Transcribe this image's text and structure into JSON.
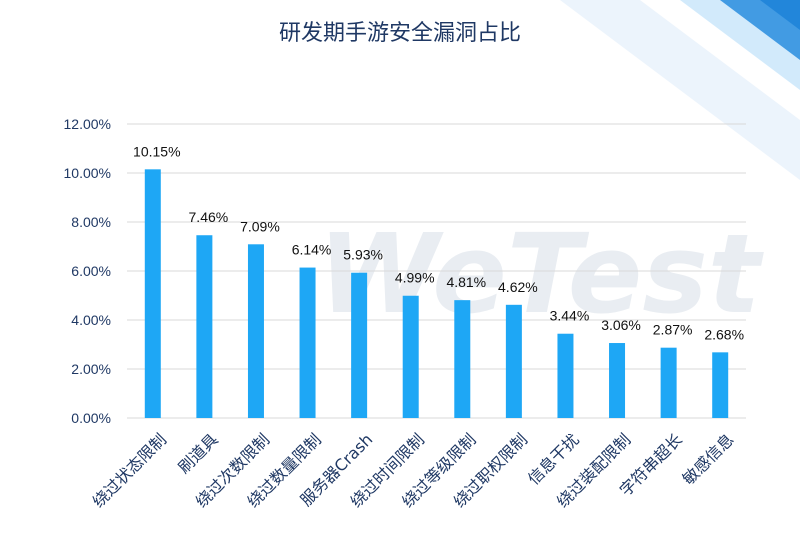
{
  "colors": {
    "bar": "#1ea7f5",
    "gridline": "#d9d9d9",
    "axis_text": "#1f3864",
    "title": "#1f3864",
    "accent_band": "#0a79d6"
  },
  "watermark": "WeTest",
  "chart_data": {
    "type": "bar",
    "title": "研发期手游安全漏洞占比",
    "xlabel": "",
    "ylabel": "",
    "ylim": [
      0,
      0.12
    ],
    "ytick_values": [
      0,
      0.02,
      0.04,
      0.06,
      0.08,
      0.1,
      0.12
    ],
    "ytick_labels": [
      "0.00%",
      "2.00%",
      "4.00%",
      "6.00%",
      "8.00%",
      "10.00%",
      "12.00%"
    ],
    "grid": true,
    "legend": "none",
    "categories": [
      "绕过状态限制",
      "刷道具",
      "绕过次数限制",
      "绕过数量限制",
      "服务器Crash",
      "绕过时间限制",
      "绕过等级限制",
      "绕过职权限制",
      "信息干扰",
      "绕过装配限制",
      "字符串超长",
      "敏感信息"
    ],
    "values": [
      0.1015,
      0.0746,
      0.0709,
      0.0614,
      0.0593,
      0.0499,
      0.0481,
      0.0462,
      0.0344,
      0.0306,
      0.0287,
      0.0268
    ],
    "data_labels": [
      "10.15%",
      "7.46%",
      "7.09%",
      "6.14%",
      "5.93%",
      "4.99%",
      "4.81%",
      "4.62%",
      "3.44%",
      "3.06%",
      "2.87%",
      "2.68%"
    ]
  }
}
